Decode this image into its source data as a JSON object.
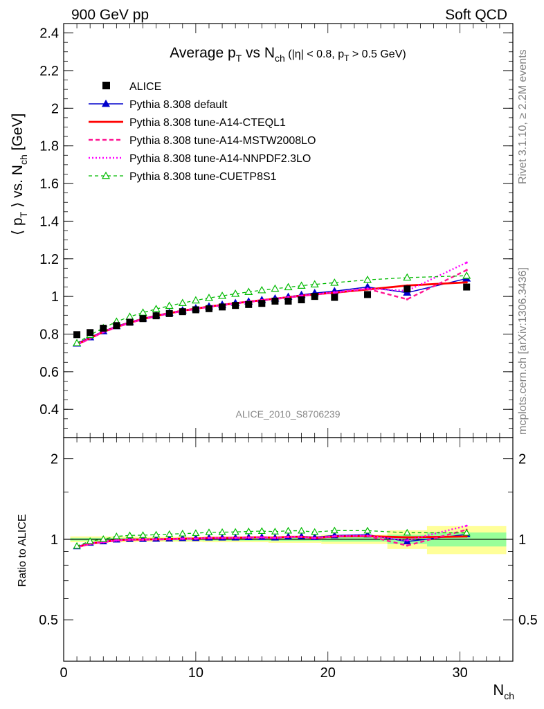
{
  "header": {
    "left": "900 GeV pp",
    "right": "Soft QCD"
  },
  "side_labels": {
    "rivet": "Rivet 3.1.10, ≥ 2.2M events",
    "mcplots": "mcplots.cern.ch [arXiv:1306.3436]"
  },
  "watermark": "ALICE_2010_S8706239",
  "chart_data": [
    {
      "type": "line",
      "title": "Average p_T vs N_ch (|η| < 0.8, p_T > 0.5 GeV)",
      "title_parts": {
        "main": "Average p",
        "sub1": "T",
        "mid": " vs N",
        "sub2": "ch",
        "tail": " (|η| < 0.8, p",
        "sub3": "T",
        "end": " > 0.5 GeV)"
      },
      "ylabel": "⟨ p_T ⟩ vs. N_ch [GeV]",
      "ylabel_parts": {
        "a": "⟨ p",
        "sub1": "T",
        "b": " ⟩ vs. N",
        "sub2": "ch",
        "c": " [GeV]"
      },
      "xlim": [
        0,
        34
      ],
      "ylim": [
        0.25,
        2.45
      ],
      "yticks": [
        "0.4",
        "0.6",
        "0.8",
        "1",
        "1.2",
        "1.4",
        "1.6",
        "1.8",
        "2",
        "2.2",
        "2.4"
      ],
      "grid": false,
      "legend_position": "top-left",
      "data": {
        "name": "ALICE",
        "x": [
          1,
          2,
          3,
          4,
          5,
          6,
          7,
          8,
          9,
          10,
          11,
          12,
          13,
          14,
          15,
          16,
          17,
          18,
          19,
          20.5,
          23,
          26,
          30.5
        ],
        "y": [
          0.797,
          0.808,
          0.831,
          0.845,
          0.863,
          0.882,
          0.897,
          0.909,
          0.919,
          0.929,
          0.935,
          0.944,
          0.952,
          0.957,
          0.963,
          0.975,
          0.975,
          0.982,
          1.0,
          0.995,
          1.01,
          1.04,
          1.05
        ]
      },
      "series": [
        {
          "name": "Pythia 8.308 default",
          "color": "#0000cc",
          "style": "solid-triangle",
          "x": [
            1,
            2,
            3,
            4,
            5,
            6,
            7,
            8,
            9,
            10,
            11,
            12,
            13,
            14,
            15,
            16,
            17,
            18,
            19,
            20.5,
            23,
            26,
            30.5
          ],
          "y": [
            0.75,
            0.783,
            0.815,
            0.842,
            0.864,
            0.883,
            0.9,
            0.913,
            0.926,
            0.937,
            0.947,
            0.956,
            0.965,
            0.973,
            0.981,
            0.989,
            0.998,
            1.008,
            1.018,
            1.028,
            1.05,
            1.02,
            1.095
          ]
        },
        {
          "name": "Pythia 8.308 tune-A14-CTEQL1",
          "color": "#ff0000",
          "style": "solid-thick",
          "x": [
            1,
            2,
            3,
            4,
            5,
            6,
            7,
            8,
            9,
            10,
            11,
            12,
            13,
            14,
            15,
            16,
            17,
            18,
            19,
            20.5,
            23,
            26,
            30.5
          ],
          "y": [
            0.745,
            0.778,
            0.812,
            0.838,
            0.861,
            0.88,
            0.897,
            0.911,
            0.924,
            0.935,
            0.946,
            0.955,
            0.964,
            0.972,
            0.98,
            0.988,
            0.996,
            1.004,
            1.011,
            1.02,
            1.037,
            1.058,
            1.075
          ]
        },
        {
          "name": "Pythia 8.308 tune-A14-MSTW2008LO",
          "color": "#ff1493",
          "style": "dashed",
          "x": [
            1,
            2,
            3,
            4,
            5,
            6,
            7,
            8,
            9,
            10,
            11,
            12,
            13,
            14,
            15,
            16,
            17,
            18,
            19,
            20.5,
            23,
            26,
            30.5
          ],
          "y": [
            0.742,
            0.776,
            0.81,
            0.836,
            0.859,
            0.878,
            0.895,
            0.909,
            0.922,
            0.933,
            0.944,
            0.953,
            0.962,
            0.97,
            0.978,
            0.986,
            0.994,
            1.002,
            1.01,
            1.02,
            1.04,
            0.985,
            1.14
          ]
        },
        {
          "name": "Pythia 8.308 tune-A14-NNPDF2.3LO",
          "color": "#ff00ff",
          "style": "dotted",
          "x": [
            1,
            2,
            3,
            4,
            5,
            6,
            7,
            8,
            9,
            10,
            11,
            12,
            13,
            14,
            15,
            16,
            17,
            18,
            19,
            20.5,
            23,
            26,
            30.5
          ],
          "y": [
            0.744,
            0.778,
            0.812,
            0.838,
            0.861,
            0.88,
            0.897,
            0.911,
            0.924,
            0.935,
            0.946,
            0.955,
            0.964,
            0.972,
            0.98,
            0.988,
            0.996,
            1.004,
            1.012,
            1.022,
            1.042,
            1.03,
            1.18
          ]
        },
        {
          "name": "Pythia 8.308 tune-CUETP8S1",
          "color": "#00bb00",
          "style": "dashed-open-triangle",
          "x": [
            1,
            2,
            3,
            4,
            5,
            6,
            7,
            8,
            9,
            10,
            11,
            12,
            13,
            14,
            15,
            16,
            17,
            18,
            19,
            20.5,
            23,
            26,
            30.5
          ],
          "y": [
            0.752,
            0.795,
            0.832,
            0.866,
            0.892,
            0.914,
            0.933,
            0.95,
            0.965,
            0.979,
            0.992,
            1.003,
            1.014,
            1.024,
            1.033,
            1.041,
            1.049,
            1.057,
            1.064,
            1.073,
            1.088,
            1.1,
            1.11
          ]
        }
      ]
    },
    {
      "type": "line",
      "ylabel": "Ratio to ALICE",
      "xlabel": "N_ch",
      "xlabel_parts": {
        "main": "N",
        "sub": "ch"
      },
      "xlim": [
        0,
        34
      ],
      "ylim": [
        0.35,
        2.4
      ],
      "ylog": true,
      "xticks": [
        "0",
        "10",
        "20",
        "30"
      ],
      "yticks": [
        "0.5",
        "1",
        "2"
      ],
      "uncertainty_bands": [
        {
          "x0": 0.5,
          "x1": 5.5,
          "stat": 0.012,
          "total": 0.025
        },
        {
          "x0": 5.5,
          "x1": 10.5,
          "stat": 0.01,
          "total": 0.022
        },
        {
          "x0": 10.5,
          "x1": 15.5,
          "stat": 0.012,
          "total": 0.025
        },
        {
          "x0": 15.5,
          "x1": 19.5,
          "stat": 0.015,
          "total": 0.03
        },
        {
          "x0": 19.5,
          "x1": 24.5,
          "stat": 0.02,
          "total": 0.04
        },
        {
          "x0": 24.5,
          "x1": 27.5,
          "stat": 0.04,
          "total": 0.08
        },
        {
          "x0": 27.5,
          "x1": 33.5,
          "stat": 0.06,
          "total": 0.12
        }
      ],
      "series": [
        {
          "name": "Pythia 8.308 default",
          "x": [
            1,
            2,
            3,
            4,
            5,
            6,
            7,
            8,
            9,
            10,
            11,
            12,
            13,
            14,
            15,
            16,
            17,
            18,
            19,
            20.5,
            23,
            26,
            30.5
          ],
          "y": [
            0.94,
            0.969,
            0.981,
            0.996,
            1.001,
            1.001,
            1.003,
            1.004,
            1.008,
            1.009,
            1.013,
            1.013,
            1.014,
            1.017,
            1.019,
            1.014,
            1.024,
            1.026,
            1.018,
            1.033,
            1.04,
            0.981,
            1.043
          ]
        },
        {
          "name": "Pythia 8.308 tune-A14-CTEQL1",
          "x": [
            1,
            2,
            3,
            4,
            5,
            6,
            7,
            8,
            9,
            10,
            11,
            12,
            13,
            14,
            15,
            16,
            17,
            18,
            19,
            20.5,
            23,
            26,
            30.5
          ],
          "y": [
            0.935,
            0.963,
            0.977,
            0.992,
            0.998,
            0.998,
            1.0,
            1.002,
            1.005,
            1.006,
            1.012,
            1.012,
            1.013,
            1.016,
            1.018,
            1.013,
            1.022,
            1.022,
            1.011,
            1.025,
            1.027,
            1.017,
            1.024
          ]
        },
        {
          "name": "Pythia 8.308 tune-A14-MSTW2008LO",
          "x": [
            1,
            2,
            3,
            4,
            5,
            6,
            7,
            8,
            9,
            10,
            11,
            12,
            13,
            14,
            15,
            16,
            17,
            18,
            19,
            20.5,
            23,
            26,
            30.5
          ],
          "y": [
            0.931,
            0.96,
            0.975,
            0.989,
            0.995,
            0.995,
            0.998,
            1.0,
            1.003,
            1.004,
            1.01,
            1.01,
            1.011,
            1.014,
            1.016,
            1.011,
            1.02,
            1.02,
            1.01,
            1.025,
            1.03,
            0.947,
            1.086
          ]
        },
        {
          "name": "Pythia 8.308 tune-A14-NNPDF2.3LO",
          "x": [
            1,
            2,
            3,
            4,
            5,
            6,
            7,
            8,
            9,
            10,
            11,
            12,
            13,
            14,
            15,
            16,
            17,
            18,
            19,
            20.5,
            23,
            26,
            30.5
          ],
          "y": [
            0.933,
            0.963,
            0.977,
            0.992,
            0.998,
            0.998,
            1.0,
            1.002,
            1.005,
            1.006,
            1.012,
            1.012,
            1.013,
            1.016,
            1.018,
            1.013,
            1.022,
            1.022,
            1.012,
            1.027,
            1.032,
            0.99,
            1.124
          ]
        },
        {
          "name": "Pythia 8.308 tune-CUETP8S1",
          "x": [
            1,
            2,
            3,
            4,
            5,
            6,
            7,
            8,
            9,
            10,
            11,
            12,
            13,
            14,
            15,
            16,
            17,
            18,
            19,
            20.5,
            23,
            26,
            30.5
          ],
          "y": [
            0.944,
            0.984,
            1.001,
            1.025,
            1.034,
            1.036,
            1.04,
            1.045,
            1.05,
            1.054,
            1.061,
            1.063,
            1.065,
            1.07,
            1.073,
            1.068,
            1.076,
            1.076,
            1.064,
            1.078,
            1.077,
            1.058,
            1.057
          ]
        }
      ]
    }
  ]
}
